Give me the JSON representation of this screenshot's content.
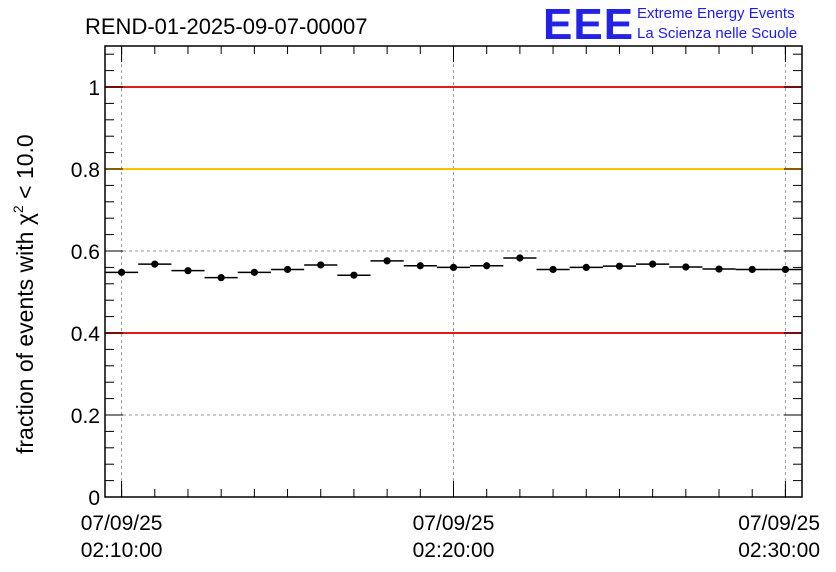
{
  "chart_data": {
    "type": "scatter",
    "title": "REND-01-2025-09-07-00007",
    "ylabel_prefix": "fraction of events with ",
    "ylabel_chi": "χ",
    "ylabel_sup": "2",
    "ylabel_suffix": " < 10.0",
    "ylim": [
      0,
      1.1
    ],
    "yticks": [
      0,
      0.2,
      0.4,
      0.6,
      0.8,
      1
    ],
    "ytick_labels": [
      "0",
      "0.2",
      "0.4",
      "0.6",
      "0.8",
      "1"
    ],
    "xlim_minutes": [
      0,
      21
    ],
    "xticks": [
      {
        "minute": 0,
        "date": "07/09/25",
        "time": "02:10:00"
      },
      {
        "minute": 10,
        "date": "07/09/25",
        "time": "02:20:00"
      },
      {
        "minute": 20,
        "date": "07/09/25",
        "time": "02:30:00"
      }
    ],
    "grid": true,
    "reference_lines": [
      {
        "y": 1.0,
        "color": "#e31a1c"
      },
      {
        "y": 0.8,
        "color": "#ffc000"
      },
      {
        "y": 0.4,
        "color": "#e31a1c"
      }
    ],
    "bin_width_minutes": 1,
    "x": [
      0,
      1,
      2,
      3,
      4,
      5,
      6,
      7,
      8,
      9,
      10,
      11,
      12,
      13,
      14,
      15,
      16,
      17,
      18,
      19,
      20
    ],
    "values": [
      0.548,
      0.568,
      0.552,
      0.535,
      0.548,
      0.555,
      0.566,
      0.541,
      0.576,
      0.564,
      0.56,
      0.564,
      0.583,
      0.555,
      0.56,
      0.563,
      0.568,
      0.561,
      0.556,
      0.555,
      0.555
    ]
  },
  "logo": {
    "text": "EEE",
    "line1": "Extreme Energy Events",
    "line2": "La Scienza nelle Scuole"
  }
}
